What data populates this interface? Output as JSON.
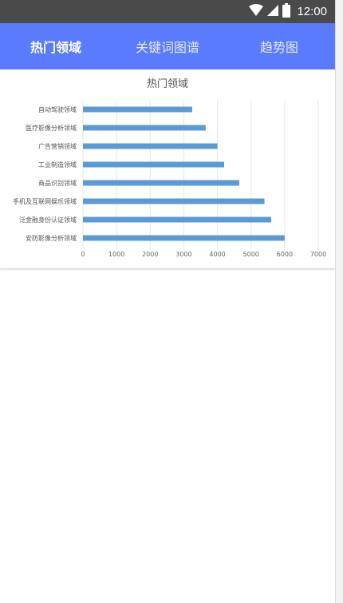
{
  "status_bar": {
    "time": "12:00",
    "wifi_icon": "wifi-icon",
    "signal_icon": "signal-icon",
    "battery_icon": "battery-icon"
  },
  "tabs": [
    {
      "label": "热门领域",
      "active": true
    },
    {
      "label": "关键词图谱",
      "active": false
    },
    {
      "label": "趋势图",
      "active": false
    }
  ],
  "colors": {
    "tab_bar": "#5b7bff",
    "bar": "#5b9bd5"
  },
  "chart_data": {
    "type": "bar",
    "orientation": "horizontal",
    "title": "热门领域",
    "categories": [
      "安防影像分析领域",
      "泛金融身份认证领域",
      "手机及互联网娱乐领域",
      "商品识别领域",
      "工业制造领域",
      "广告营销领域",
      "医疗影像分析领域",
      "自动驾驶领域"
    ],
    "values": [
      6000,
      5600,
      5400,
      4650,
      4200,
      4000,
      3650,
      3250
    ],
    "xlim": [
      0,
      7000
    ],
    "xticks": [
      0,
      1000,
      2000,
      3000,
      4000,
      5000,
      6000,
      7000
    ],
    "grid": true,
    "xlabel": "",
    "ylabel": ""
  }
}
